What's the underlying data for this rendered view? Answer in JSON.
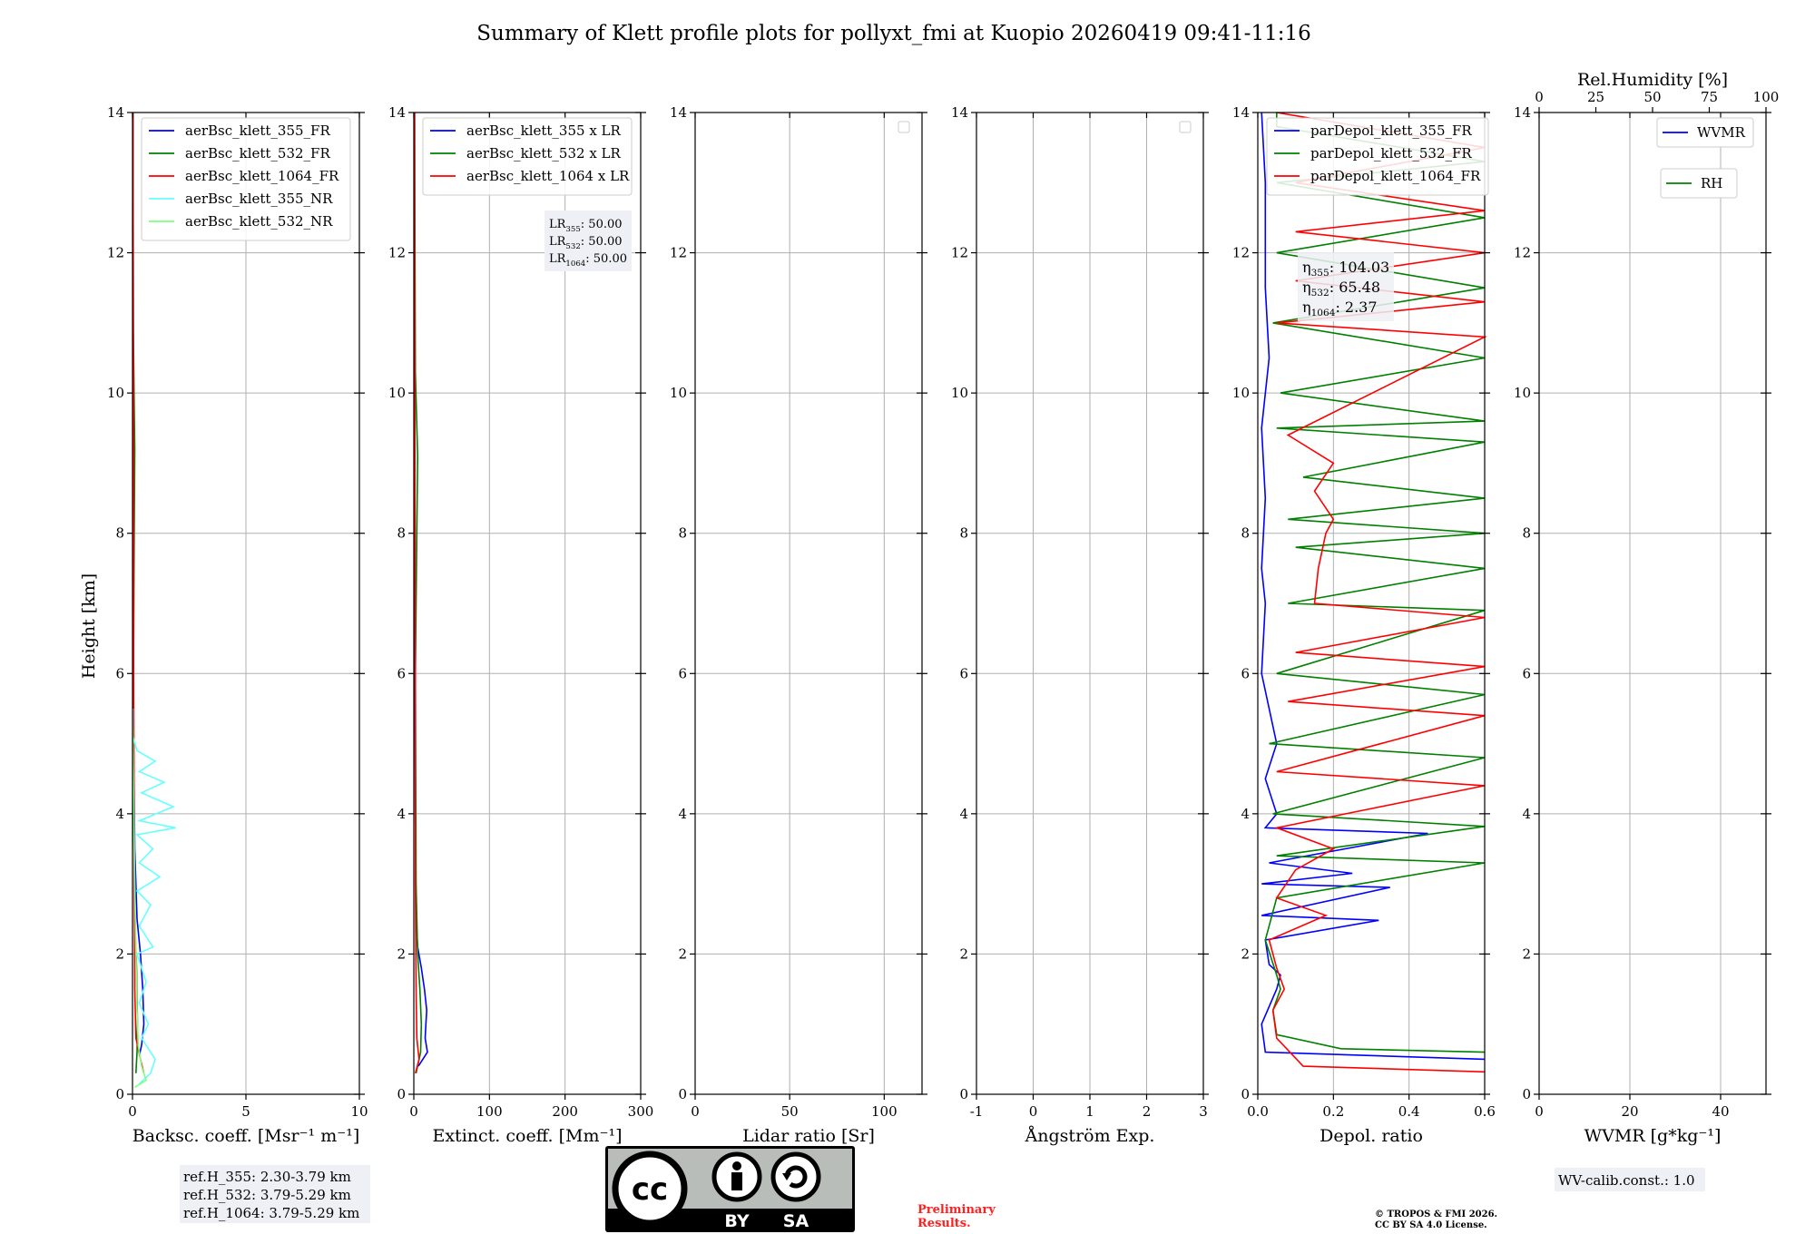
{
  "figure": {
    "title": "Summary of Klett profile plots for pollyxt_fmi at Kuopio 20260419 09:41-11:16",
    "y_label": "Height [km]",
    "y_range": [
      0,
      14
    ],
    "y_ticks": [
      0,
      2,
      4,
      6,
      8,
      10,
      12,
      14
    ],
    "ref_heights": [
      "ref.H_355: 2.30-3.79 km",
      "ref.H_532: 3.79-5.29 km",
      "ref.H_1064: 3.79-5.29 km"
    ],
    "wv_calib": "WV-calib.const.: 1.0",
    "preliminary": [
      "Preliminary",
      "Results."
    ],
    "copyright": [
      "© TROPOS & FMI 2026.",
      "CC BY SA 4.0 License."
    ],
    "license_badge": {
      "by": "BY",
      "sa": "SA",
      "icon": "cc-by-sa-logo"
    },
    "annotations": {
      "lr": [
        {
          "name": "LR",
          "sub": "355",
          "value": ": 50.00"
        },
        {
          "name": "LR",
          "sub": "532",
          "value": ": 50.00"
        },
        {
          "name": "LR",
          "sub": "1064",
          "value": ": 50.00"
        }
      ],
      "eta": [
        {
          "name": "η",
          "sub": "355",
          "value": ": 104.03"
        },
        {
          "name": "η",
          "sub": "532",
          "value": ": 65.48"
        },
        {
          "name": "η",
          "sub": "1064",
          "value": ": 2.37"
        }
      ]
    }
  },
  "colors": {
    "blue": "#0000ff",
    "green": "#008000",
    "red": "#ff0000",
    "cyan": "#66ffff",
    "lightgreen": "#80ff80",
    "grid": "#b0b0b0"
  },
  "chart_data": [
    {
      "type": "line",
      "xlabel": "Backsc. coeff. [Msr⁻¹ m⁻¹]",
      "xlim": [
        0,
        10
      ],
      "xticks": [
        0,
        5,
        10
      ],
      "legend": [
        "aerBsc_klett_355_FR",
        "aerBsc_klett_532_FR",
        "aerBsc_klett_1064_FR",
        "aerBsc_klett_355_NR",
        "aerBsc_klett_532_NR"
      ],
      "series": [
        {
          "name": "aerBsc_klett_355_FR",
          "color": "blue",
          "points": [
            [
              0.3,
              0.55
            ],
            [
              0.4,
              0.7
            ],
            [
              0.5,
              1.0
            ],
            [
              0.45,
              1.5
            ],
            [
              0.35,
              2.0
            ],
            [
              0.2,
              2.5
            ],
            [
              0.1,
              3.5
            ],
            [
              0.05,
              5
            ],
            [
              0.03,
              8
            ],
            [
              0.02,
              10
            ],
            [
              0.02,
              14
            ]
          ]
        },
        {
          "name": "aerBsc_klett_532_FR",
          "color": "green",
          "points": [
            [
              0.15,
              0.3
            ],
            [
              0.2,
              0.6
            ],
            [
              0.22,
              1.0
            ],
            [
              0.18,
              1.8
            ],
            [
              0.1,
              2.5
            ],
            [
              0.05,
              4
            ],
            [
              0.04,
              6
            ],
            [
              0.1,
              9.2
            ],
            [
              0.03,
              11
            ],
            [
              0.02,
              14
            ]
          ]
        },
        {
          "name": "aerBsc_klett_1064_FR",
          "color": "red",
          "points": [
            [
              0.5,
              0.3
            ],
            [
              0.35,
              0.5
            ],
            [
              0.15,
              0.8
            ],
            [
              0.1,
              1.5
            ],
            [
              0.08,
              3
            ],
            [
              0.05,
              6
            ],
            [
              0.05,
              9
            ],
            [
              0.03,
              12
            ],
            [
              0.02,
              14
            ]
          ]
        },
        {
          "name": "aerBsc_klett_355_NR",
          "color": "cyan",
          "points": [
            [
              0.3,
              0.15
            ],
            [
              0.8,
              0.3
            ],
            [
              1.0,
              0.5
            ],
            [
              0.4,
              0.8
            ],
            [
              0.7,
              1.0
            ],
            [
              0.3,
              1.3
            ],
            [
              0.6,
              1.6
            ],
            [
              0.2,
              2.0
            ],
            [
              0.9,
              2.1
            ],
            [
              0.3,
              2.4
            ],
            [
              0.8,
              2.7
            ],
            [
              0.2,
              2.9
            ],
            [
              1.2,
              3.1
            ],
            [
              0.3,
              3.3
            ],
            [
              0.9,
              3.5
            ],
            [
              0.2,
              3.7
            ],
            [
              1.9,
              3.8
            ],
            [
              0.3,
              3.9
            ],
            [
              1.8,
              4.1
            ],
            [
              0.4,
              4.3
            ],
            [
              1.4,
              4.45
            ],
            [
              0.3,
              4.6
            ],
            [
              1.0,
              4.75
            ],
            [
              0.2,
              4.9
            ],
            [
              0.02,
              5.1
            ],
            [
              0.02,
              5.5
            ]
          ]
        },
        {
          "name": "aerBsc_klett_532_NR",
          "color": "lightgreen",
          "points": [
            [
              0.1,
              0.1
            ],
            [
              0.6,
              0.2
            ],
            [
              0.4,
              0.4
            ],
            [
              0.25,
              0.7
            ],
            [
              0.2,
              1.2
            ],
            [
              0.15,
              2.0
            ],
            [
              0.1,
              3.0
            ],
            [
              0.06,
              4.0
            ],
            [
              0.03,
              4.8
            ],
            [
              0.02,
              5.2
            ]
          ]
        }
      ]
    },
    {
      "type": "line",
      "xlabel": "Extinct. coeff. [Mm⁻¹]",
      "xlim": [
        0,
        300
      ],
      "xticks": [
        0,
        100,
        200,
        300
      ],
      "legend": [
        "aerBsc_klett_355 x LR",
        "aerBsc_klett_532 x LR",
        "aerBsc_klett_1064 x LR"
      ],
      "series": [
        {
          "name": "aerBsc_klett_355 x LR",
          "color": "blue",
          "points": [
            [
              6,
              0.4
            ],
            [
              18,
              0.6
            ],
            [
              15,
              0.8
            ],
            [
              16,
              1.0
            ],
            [
              17,
              1.2
            ],
            [
              14,
              1.5
            ],
            [
              10,
              1.8
            ],
            [
              5,
              2.1
            ],
            [
              3,
              2.5
            ],
            [
              2,
              4
            ],
            [
              1,
              8
            ],
            [
              1,
              14
            ]
          ]
        },
        {
          "name": "aerBsc_klett_532 x LR",
          "color": "green",
          "points": [
            [
              3,
              0.3
            ],
            [
              9,
              0.6
            ],
            [
              10,
              1.0
            ],
            [
              8,
              1.5
            ],
            [
              5,
              2.0
            ],
            [
              3,
              3
            ],
            [
              2,
              6
            ],
            [
              5,
              9.1
            ],
            [
              2,
              10.3
            ],
            [
              1,
              14
            ]
          ]
        },
        {
          "name": "aerBsc_klett_1064 x LR",
          "color": "red",
          "points": [
            [
              2,
              0.3
            ],
            [
              7,
              0.5
            ],
            [
              4,
              0.8
            ],
            [
              3,
              1.5
            ],
            [
              2,
              3
            ],
            [
              2,
              6
            ],
            [
              1,
              11.7
            ],
            [
              1,
              14
            ]
          ]
        }
      ]
    },
    {
      "type": "line",
      "xlabel": "Lidar ratio [Sr]",
      "xlim": [
        0,
        120
      ],
      "xticks": [
        0,
        50,
        100
      ],
      "series": []
    },
    {
      "type": "line",
      "xlabel": "Ångström Exp.",
      "xlim": [
        -1,
        3
      ],
      "xticks": [
        -1,
        0,
        1,
        2,
        3
      ],
      "series": []
    },
    {
      "type": "line",
      "xlabel": "Depol. ratio",
      "xlim": [
        0,
        0.6
      ],
      "xticks": [
        0.0,
        0.2,
        0.4,
        0.6
      ],
      "legend": [
        "parDepol_klett_355_FR",
        "parDepol_klett_532_FR",
        "parDepol_klett_1064_FR"
      ],
      "series": [
        {
          "name": "parDepol_klett_355_FR",
          "color": "blue",
          "points": [
            [
              0.6,
              0.5
            ],
            [
              0.02,
              0.6
            ],
            [
              0.01,
              1.0
            ],
            [
              0.05,
              1.5
            ],
            [
              0.06,
              1.7
            ],
            [
              0.03,
              1.85
            ],
            [
              0.02,
              2.2
            ],
            [
              0.32,
              2.48
            ],
            [
              0.01,
              2.55
            ],
            [
              0.35,
              2.95
            ],
            [
              0.01,
              3.0
            ],
            [
              0.25,
              3.15
            ],
            [
              0.03,
              3.3
            ],
            [
              0.45,
              3.72
            ],
            [
              0.02,
              3.8
            ],
            [
              0.05,
              4.0
            ],
            [
              0.02,
              4.5
            ],
            [
              0.05,
              5.0
            ],
            [
              0.01,
              6.0
            ],
            [
              0.02,
              7.0
            ],
            [
              0.01,
              7.5
            ],
            [
              0.02,
              8.5
            ],
            [
              0.01,
              9.5
            ],
            [
              0.03,
              10.5
            ],
            [
              0.02,
              11.5
            ],
            [
              0.02,
              13.0
            ],
            [
              0.01,
              14
            ]
          ]
        },
        {
          "name": "parDepol_klett_532_FR",
          "color": "green",
          "points": [
            [
              0.6,
              0.6
            ],
            [
              0.22,
              0.65
            ],
            [
              0.05,
              0.85
            ],
            [
              0.04,
              1.2
            ],
            [
              0.06,
              1.5
            ],
            [
              0.05,
              1.7
            ],
            [
              0.02,
              2.2
            ],
            [
              0.05,
              2.8
            ],
            [
              0.6,
              3.3
            ],
            [
              0.05,
              3.4
            ],
            [
              0.6,
              3.82
            ],
            [
              0.04,
              4.0
            ],
            [
              0.6,
              4.8
            ],
            [
              0.03,
              5.0
            ],
            [
              0.6,
              5.7
            ],
            [
              0.05,
              6.0
            ],
            [
              0.6,
              6.9
            ],
            [
              0.08,
              7.0
            ],
            [
              0.6,
              7.5
            ],
            [
              0.1,
              7.8
            ],
            [
              0.6,
              8.0
            ],
            [
              0.08,
              8.2
            ],
            [
              0.6,
              8.5
            ],
            [
              0.12,
              8.8
            ],
            [
              0.6,
              9.3
            ],
            [
              0.05,
              9.5
            ],
            [
              0.6,
              9.6
            ],
            [
              0.06,
              10.0
            ],
            [
              0.6,
              10.5
            ],
            [
              0.04,
              11.0
            ],
            [
              0.6,
              11.5
            ],
            [
              0.05,
              12.0
            ],
            [
              0.6,
              12.5
            ],
            [
              0.05,
              13.0
            ],
            [
              0.6,
              13.3
            ],
            [
              0.05,
              13.8
            ],
            [
              0.05,
              14
            ]
          ]
        },
        {
          "name": "parDepol_klett_1064_FR",
          "color": "red",
          "points": [
            [
              0.6,
              0.32
            ],
            [
              0.12,
              0.4
            ],
            [
              0.05,
              0.8
            ],
            [
              0.04,
              1.2
            ],
            [
              0.07,
              1.5
            ],
            [
              0.05,
              1.8
            ],
            [
              0.03,
              2.2
            ],
            [
              0.18,
              2.55
            ],
            [
              0.05,
              2.8
            ],
            [
              0.1,
              3.2
            ],
            [
              0.2,
              3.5
            ],
            [
              0.05,
              3.8
            ],
            [
              0.6,
              4.4
            ],
            [
              0.05,
              4.6
            ],
            [
              0.6,
              5.4
            ],
            [
              0.08,
              5.6
            ],
            [
              0.6,
              6.1
            ],
            [
              0.1,
              6.3
            ],
            [
              0.6,
              6.8
            ],
            [
              0.15,
              7.0
            ],
            [
              0.16,
              7.5
            ],
            [
              0.18,
              8.0
            ],
            [
              0.2,
              8.2
            ],
            [
              0.15,
              8.6
            ],
            [
              0.2,
              9.0
            ],
            [
              0.08,
              9.4
            ],
            [
              0.6,
              10.8
            ],
            [
              0.05,
              11.0
            ],
            [
              0.6,
              11.3
            ],
            [
              0.1,
              11.6
            ],
            [
              0.6,
              12.0
            ],
            [
              0.1,
              12.3
            ],
            [
              0.6,
              12.6
            ],
            [
              0.1,
              13.0
            ],
            [
              0.6,
              13.5
            ],
            [
              0.05,
              14
            ]
          ]
        }
      ]
    },
    {
      "type": "line",
      "xlabel": "WVMR [g*kg⁻¹]",
      "xlim": [
        0,
        50
      ],
      "xticks": [
        0,
        20,
        40
      ],
      "top_xlabel": "Rel.Humidity [%]",
      "top_xlim": [
        0,
        100
      ],
      "top_xticks": [
        0,
        25,
        50,
        75,
        100
      ],
      "legend": [
        "WVMR",
        "RH"
      ],
      "series": []
    }
  ]
}
